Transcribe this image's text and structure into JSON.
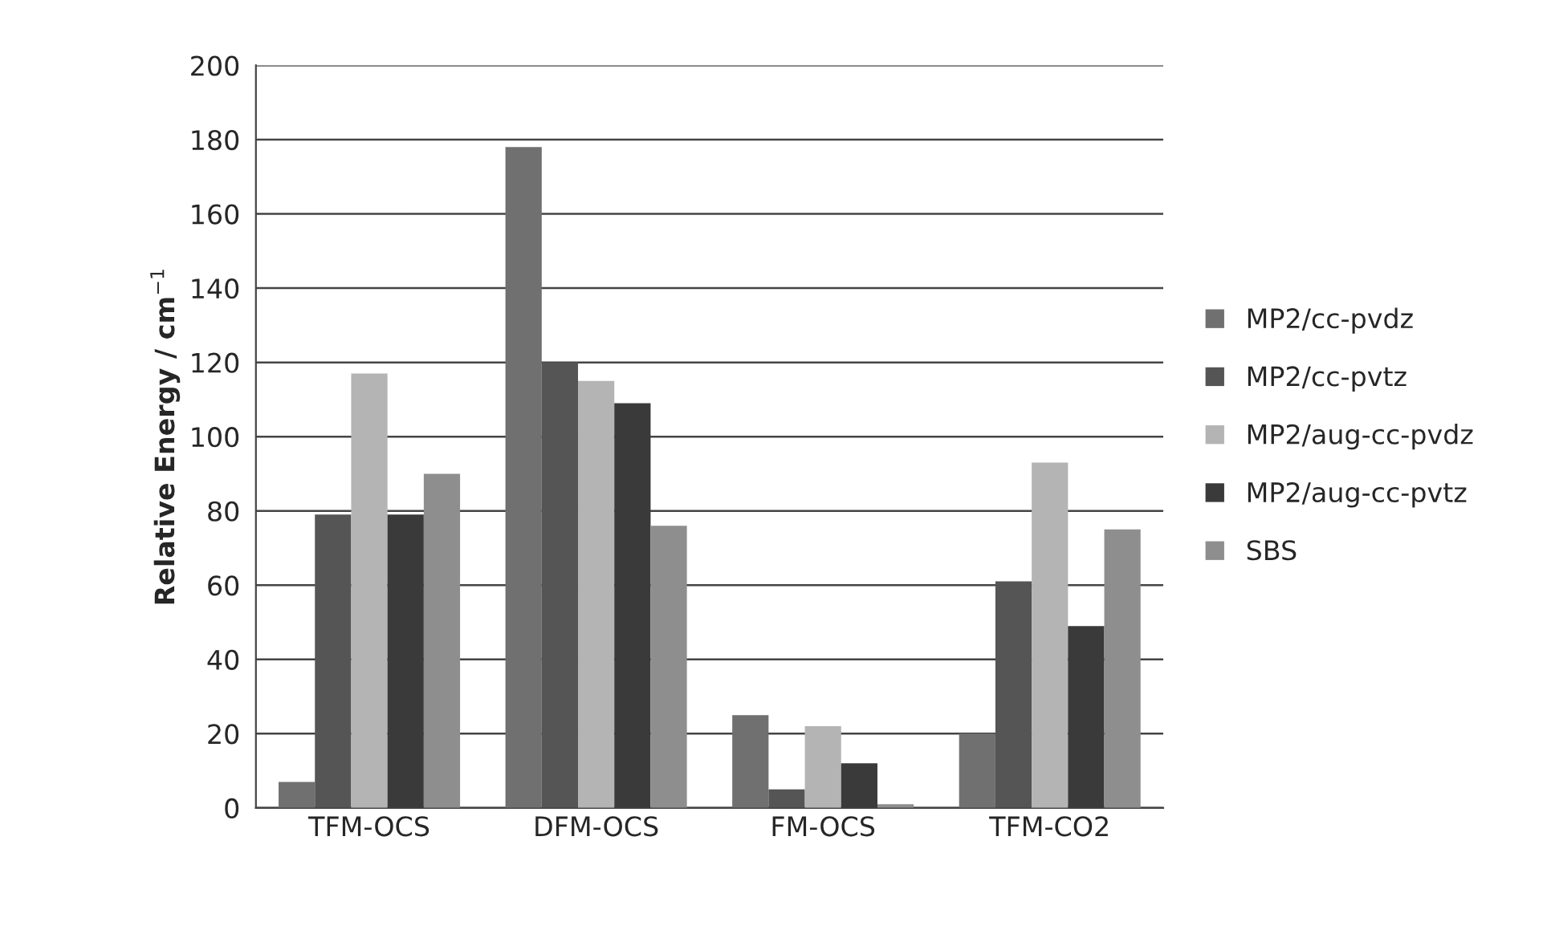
{
  "chart_data": {
    "type": "bar",
    "ylabel": "Relative Energy / cm$^{−1}$",
    "categories": [
      "TFM-OCS",
      "DFM-OCS",
      "FM-OCS",
      "TFM-CO2"
    ],
    "series": [
      {
        "name": "MP2/cc-pvdz",
        "color": "#707070",
        "values": [
          7,
          178,
          25,
          20
        ]
      },
      {
        "name": "MP2/cc-pvtz",
        "color": "#555555",
        "values": [
          79,
          120,
          5,
          61
        ]
      },
      {
        "name": "MP2/aug-cc-pvdz",
        "color": "#b4b4b4",
        "values": [
          117,
          115,
          22,
          93
        ]
      },
      {
        "name": "MP2/aug-cc-pvtz",
        "color": "#3a3a3a",
        "values": [
          79,
          109,
          12,
          49
        ]
      },
      {
        "name": "SBS",
        "color": "#8e8e8e",
        "values": [
          90,
          76,
          1,
          75
        ]
      }
    ],
    "ylim": [
      0,
      200
    ],
    "yticks": [
      0,
      20,
      40,
      60,
      80,
      100,
      120,
      140,
      160,
      180,
      200
    ],
    "grid": "y",
    "legend": "right"
  }
}
